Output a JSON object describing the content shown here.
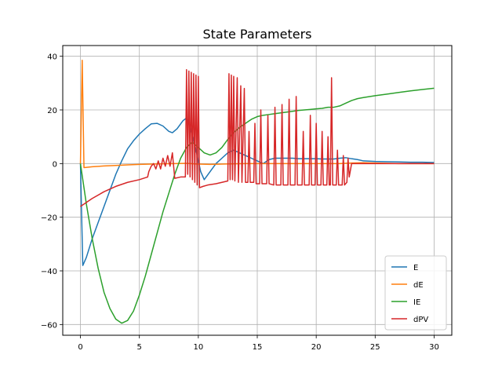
{
  "chart_data": {
    "type": "line",
    "title": "State Parameters",
    "xlabel": "",
    "ylabel": "",
    "xlim": [
      -1.5,
      31.5
    ],
    "ylim": [
      -64,
      44
    ],
    "xticks": [
      0,
      5,
      10,
      15,
      20,
      25,
      30
    ],
    "yticks": [
      -60,
      -40,
      -20,
      0,
      20,
      40
    ],
    "grid": true,
    "legend_position": "lower-right",
    "series": [
      {
        "name": "E",
        "color": "#1f77b4",
        "points": [
          [
            0,
            0
          ],
          [
            0.2,
            -38
          ],
          [
            0.5,
            -35
          ],
          [
            1,
            -28
          ],
          [
            1.5,
            -22
          ],
          [
            2,
            -16
          ],
          [
            2.5,
            -10
          ],
          [
            3,
            -4
          ],
          [
            3.5,
            1
          ],
          [
            4,
            5.5
          ],
          [
            4.5,
            8.5
          ],
          [
            5,
            11
          ],
          [
            5.5,
            13
          ],
          [
            6,
            14.8
          ],
          [
            6.5,
            15
          ],
          [
            7,
            14
          ],
          [
            7.5,
            12
          ],
          [
            7.8,
            11.5
          ],
          [
            8.2,
            13
          ],
          [
            8.7,
            16
          ],
          [
            9,
            17
          ],
          [
            9.3,
            14
          ],
          [
            9.6,
            9
          ],
          [
            9.9,
            3
          ],
          [
            10.2,
            -3
          ],
          [
            10.5,
            -6
          ],
          [
            11,
            -3
          ],
          [
            11.5,
            0
          ],
          [
            12,
            2
          ],
          [
            12.5,
            4
          ],
          [
            13,
            5
          ],
          [
            13.5,
            4
          ],
          [
            14,
            3
          ],
          [
            14.5,
            2
          ],
          [
            15,
            1
          ],
          [
            15.5,
            0
          ],
          [
            16,
            1.5
          ],
          [
            16.5,
            2
          ],
          [
            17,
            2
          ],
          [
            17.5,
            2
          ],
          [
            18,
            2
          ],
          [
            18.5,
            1.8
          ],
          [
            19,
            1.8
          ],
          [
            19.5,
            1.8
          ],
          [
            20,
            1.8
          ],
          [
            20.5,
            1.7
          ],
          [
            21,
            1.7
          ],
          [
            21.5,
            1.7
          ],
          [
            22,
            2
          ],
          [
            22.5,
            2.2
          ],
          [
            23,
            1.8
          ],
          [
            23.5,
            1.5
          ],
          [
            24,
            1
          ],
          [
            25,
            0.8
          ],
          [
            26,
            0.7
          ],
          [
            27,
            0.6
          ],
          [
            28,
            0.5
          ],
          [
            29,
            0.5
          ],
          [
            30,
            0.4
          ]
        ]
      },
      {
        "name": "dE",
        "color": "#ff7f0e",
        "points": [
          [
            0,
            0
          ],
          [
            0.15,
            38.5
          ],
          [
            0.3,
            -1.5
          ],
          [
            1,
            -1.2
          ],
          [
            2,
            -0.9
          ],
          [
            3,
            -0.7
          ],
          [
            4,
            -0.5
          ],
          [
            5,
            -0.3
          ],
          [
            6,
            -0.2
          ],
          [
            7,
            -0.1
          ],
          [
            8,
            0
          ],
          [
            9,
            0.1
          ],
          [
            10,
            -0.2
          ],
          [
            11,
            -0.3
          ],
          [
            12,
            -0.2
          ],
          [
            13,
            -0.1
          ],
          [
            14,
            0
          ],
          [
            15,
            0
          ],
          [
            16,
            0
          ],
          [
            17,
            0
          ],
          [
            18,
            0
          ],
          [
            19,
            0
          ],
          [
            20,
            0
          ],
          [
            21,
            0
          ],
          [
            22,
            0
          ],
          [
            23,
            0.2
          ],
          [
            24,
            0.3
          ],
          [
            25,
            0.2
          ],
          [
            26,
            0.1
          ],
          [
            27,
            0
          ],
          [
            28,
            0
          ],
          [
            29,
            0
          ],
          [
            30,
            0
          ]
        ]
      },
      {
        "name": "IE",
        "color": "#2ca02c",
        "points": [
          [
            0,
            0
          ],
          [
            0.5,
            -15
          ],
          [
            1,
            -28
          ],
          [
            1.5,
            -39
          ],
          [
            2,
            -48
          ],
          [
            2.5,
            -54
          ],
          [
            3,
            -58
          ],
          [
            3.5,
            -59.5
          ],
          [
            4,
            -58.5
          ],
          [
            4.5,
            -55
          ],
          [
            5,
            -49
          ],
          [
            5.5,
            -42
          ],
          [
            6,
            -34
          ],
          [
            6.5,
            -26
          ],
          [
            7,
            -18
          ],
          [
            7.5,
            -11
          ],
          [
            8,
            -4
          ],
          [
            8.5,
            2
          ],
          [
            9,
            6
          ],
          [
            9.5,
            8
          ],
          [
            10,
            6
          ],
          [
            10.5,
            4
          ],
          [
            11,
            3.2
          ],
          [
            11.5,
            4
          ],
          [
            12,
            6
          ],
          [
            12.5,
            9
          ],
          [
            13,
            11.5
          ],
          [
            13.5,
            13.5
          ],
          [
            14,
            15
          ],
          [
            14.5,
            16.5
          ],
          [
            15,
            17.5
          ],
          [
            15.5,
            18
          ],
          [
            16,
            18.3
          ],
          [
            16.5,
            18.6
          ],
          [
            17,
            18.9
          ],
          [
            17.5,
            19.2
          ],
          [
            18,
            19.5
          ],
          [
            18.5,
            19.8
          ],
          [
            19,
            20
          ],
          [
            19.5,
            20.2
          ],
          [
            20,
            20.4
          ],
          [
            20.5,
            20.6
          ],
          [
            21,
            21
          ],
          [
            21.5,
            21
          ],
          [
            22,
            21.5
          ],
          [
            22.5,
            22.5
          ],
          [
            23,
            23.5
          ],
          [
            23.5,
            24.2
          ],
          [
            24,
            24.6
          ],
          [
            25,
            25.3
          ],
          [
            26,
            25.9
          ],
          [
            27,
            26.5
          ],
          [
            28,
            27.1
          ],
          [
            29,
            27.6
          ],
          [
            30,
            28.1
          ]
        ]
      },
      {
        "name": "dPV",
        "color": "#d62728",
        "points": [
          [
            0,
            -16
          ],
          [
            1,
            -13
          ],
          [
            2,
            -10.5
          ],
          [
            3,
            -8.5
          ],
          [
            4,
            -7
          ],
          [
            5,
            -6
          ],
          [
            5.7,
            -5
          ],
          [
            5.8,
            -3
          ],
          [
            6,
            -1
          ],
          [
            6.2,
            0
          ],
          [
            6.4,
            -2
          ],
          [
            6.6,
            1
          ],
          [
            6.8,
            -2
          ],
          [
            7,
            2
          ],
          [
            7.2,
            -1
          ],
          [
            7.4,
            3
          ],
          [
            7.6,
            -1
          ],
          [
            7.8,
            4
          ],
          [
            8,
            -5.5
          ],
          [
            8.5,
            -5
          ],
          [
            8.9,
            -5
          ],
          [
            9,
            35
          ],
          [
            9.1,
            -4
          ],
          [
            9.2,
            34.5
          ],
          [
            9.3,
            -5
          ],
          [
            9.4,
            34
          ],
          [
            9.5,
            -6
          ],
          [
            9.6,
            33.5
          ],
          [
            9.7,
            -7
          ],
          [
            9.8,
            33
          ],
          [
            9.9,
            -8
          ],
          [
            10,
            32.5
          ],
          [
            10.1,
            -9
          ],
          [
            10.4,
            -8.5
          ],
          [
            10.8,
            -8
          ],
          [
            11.5,
            -7.5
          ],
          [
            12.5,
            -6.5
          ],
          [
            12.6,
            33.5
          ],
          [
            12.7,
            -6
          ],
          [
            12.8,
            33
          ],
          [
            12.9,
            -6
          ],
          [
            13,
            32.5
          ],
          [
            13.1,
            -6.5
          ],
          [
            13.3,
            32
          ],
          [
            13.4,
            -7
          ],
          [
            13.6,
            29
          ],
          [
            13.7,
            -7
          ],
          [
            13.9,
            28
          ],
          [
            14,
            -7
          ],
          [
            14.2,
            -7
          ],
          [
            14.3,
            12
          ],
          [
            14.4,
            -7
          ],
          [
            14.7,
            -7
          ],
          [
            14.8,
            15
          ],
          [
            14.9,
            -7.5
          ],
          [
            15.2,
            -7.5
          ],
          [
            15.3,
            20
          ],
          [
            15.4,
            -7.5
          ],
          [
            15.8,
            -7.5
          ],
          [
            15.9,
            18
          ],
          [
            16,
            -7.5
          ],
          [
            16.4,
            -8
          ],
          [
            16.5,
            21
          ],
          [
            16.6,
            -8
          ],
          [
            17,
            -8
          ],
          [
            17.1,
            22
          ],
          [
            17.2,
            -8
          ],
          [
            17.6,
            -8
          ],
          [
            17.7,
            24
          ],
          [
            17.8,
            -8
          ],
          [
            18.2,
            -8
          ],
          [
            18.3,
            25
          ],
          [
            18.4,
            -8
          ],
          [
            18.8,
            -8
          ],
          [
            18.9,
            12
          ],
          [
            19,
            -8
          ],
          [
            19.4,
            -8
          ],
          [
            19.5,
            18
          ],
          [
            19.6,
            -8
          ],
          [
            19.9,
            -8
          ],
          [
            20,
            15
          ],
          [
            20.1,
            -8
          ],
          [
            20.4,
            -8
          ],
          [
            20.5,
            12
          ],
          [
            20.6,
            -8
          ],
          [
            20.9,
            -8
          ],
          [
            21,
            10
          ],
          [
            21.1,
            -8
          ],
          [
            21.2,
            -8
          ],
          [
            21.3,
            32
          ],
          [
            21.4,
            -8
          ],
          [
            21.7,
            -8
          ],
          [
            21.8,
            5
          ],
          [
            21.9,
            -8
          ],
          [
            22.2,
            -8
          ],
          [
            22.3,
            3
          ],
          [
            22.4,
            -8
          ],
          [
            22.6,
            -7
          ],
          [
            22.7,
            2
          ],
          [
            22.8,
            -5
          ],
          [
            23,
            0
          ],
          [
            23.5,
            0
          ],
          [
            24,
            0
          ],
          [
            25,
            0
          ],
          [
            26,
            0
          ],
          [
            27,
            0
          ],
          [
            28,
            0
          ],
          [
            29,
            0
          ],
          [
            30,
            0
          ]
        ]
      }
    ]
  }
}
